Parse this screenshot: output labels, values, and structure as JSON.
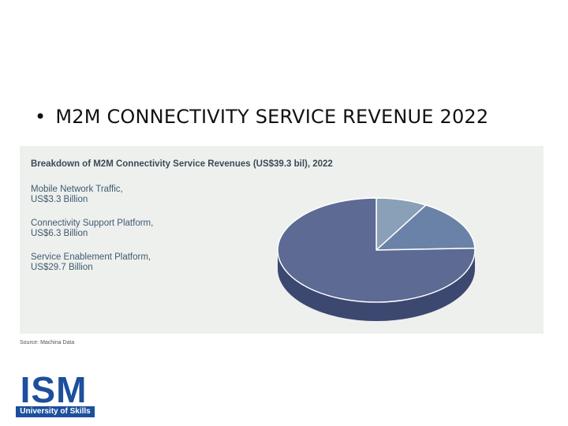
{
  "slide": {
    "bullet": "•",
    "title": "M2M CONNECTIVITY SERVICE REVENUE 2022"
  },
  "chart_data": {
    "type": "pie",
    "title": "Breakdown of M2M Connectivity Service Revenues (US$39.3 bil), 2022",
    "categories": [
      "Mobile Network Traffic",
      "Connectivity Support Platform",
      "Service Enablement Platform"
    ],
    "values": [
      3.3,
      6.3,
      29.7
    ],
    "unit": "US$ Billion",
    "legend": [
      {
        "line1": "Mobile Network Traffic,",
        "line2": "US$3.3 Billion"
      },
      {
        "line1": "Connectivity Support Platform,",
        "line2": "US$6.3 Billion"
      },
      {
        "line1": "Service Enablement Platform,",
        "line2": "US$29.7 Billion"
      }
    ],
    "colors": [
      "#8aa0b8",
      "#6a82a8",
      "#5c6a94"
    ],
    "side_colors": [
      "#6f849c",
      "#4c5f85",
      "#3d4870"
    ],
    "style": "3d",
    "source": "Source: Machina Data"
  },
  "logo": {
    "text": "ISM",
    "tagline": "University of Skills",
    "color": "#1c4f9c"
  }
}
